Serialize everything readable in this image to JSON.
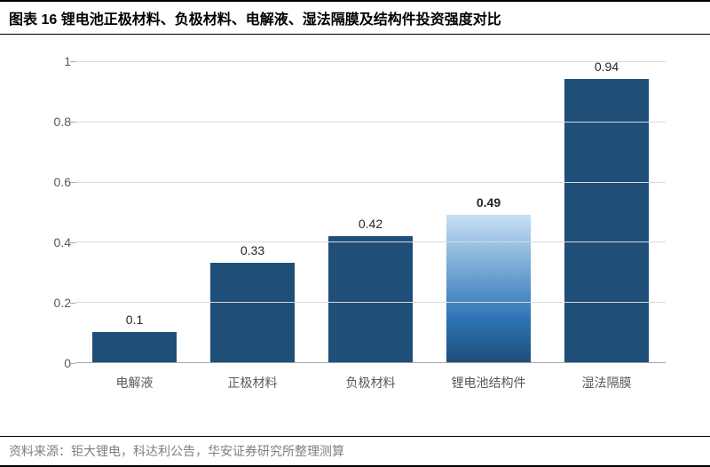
{
  "title": "图表 16 锂电池正极材料、负极材料、电解液、湿法隔膜及结构件投资强度对比",
  "source": "资料来源：钜大锂电，科达利公告，华安证券研究所整理测算",
  "chart": {
    "type": "bar",
    "ylim": [
      0,
      1
    ],
    "yticks": [
      0,
      0.2,
      0.4,
      0.6,
      0.8,
      1
    ],
    "ytick_labels": [
      "0",
      "0.2",
      "0.4",
      "0.6",
      "0.8",
      "1"
    ],
    "categories": [
      "电解液",
      "正极材料",
      "负极材料",
      "锂电池结构件",
      "湿法隔膜"
    ],
    "values": [
      0.1,
      0.33,
      0.42,
      0.49,
      0.94
    ],
    "value_labels": [
      "0.1",
      "0.33",
      "0.42",
      "0.49",
      "0.94"
    ],
    "bar_fills": [
      "#1f4e79",
      "#1f4e79",
      "#1f4e79",
      "linear-gradient(to bottom, #c6e0f5 0%, #2e75b6 70%, #1f4e79 100%)",
      "#1f4e79"
    ],
    "label_bold": [
      false,
      false,
      false,
      true,
      false
    ],
    "grid_color": "#d9d9d9",
    "axis_color": "#a6a6a6",
    "tick_fontsize": 14,
    "label_fontsize": 14,
    "bar_width_pct": 72,
    "background_color": "#ffffff"
  }
}
